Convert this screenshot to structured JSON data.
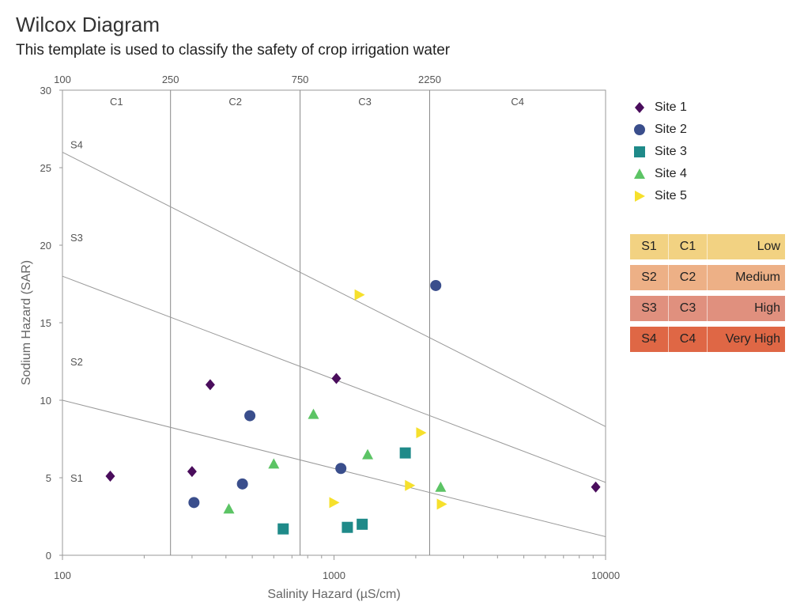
{
  "page": {
    "title": "Wilcox Diagram",
    "subtitle": "This template is used to classify the safety of crop irrigation water"
  },
  "chart_data": {
    "type": "scatter",
    "title": "Wilcox Diagram",
    "subtitle": "This template is used to classify the safety of crop irrigation water",
    "xlabel": "Salinity Hazard (µS/cm)",
    "ylabel": "Sodium Hazard (SAR)",
    "x_scale": "log",
    "xlim": [
      100,
      10000
    ],
    "ylim": [
      0,
      30
    ],
    "x_tick_labels": [
      "100",
      "1000",
      "10000"
    ],
    "y_ticks": [
      0,
      5,
      10,
      15,
      20,
      25,
      30
    ],
    "top_axis_ticks": [
      "100",
      "250",
      "750",
      "2250"
    ],
    "salinity_class_boundaries": [
      250,
      750,
      2250
    ],
    "salinity_class_labels": [
      "C1",
      "C2",
      "C3",
      "C4"
    ],
    "sodium_class_labels": [
      "S1",
      "S2",
      "S3",
      "S4"
    ],
    "sodium_class_lines": [
      {
        "x": [
          100,
          10000
        ],
        "y": [
          10,
          1.2
        ]
      },
      {
        "x": [
          100,
          10000
        ],
        "y": [
          18,
          4.7
        ]
      },
      {
        "x": [
          100,
          10000
        ],
        "y": [
          26,
          8.3
        ]
      }
    ],
    "series": [
      {
        "name": "Site 1",
        "marker": "diamond",
        "color": "#4a0d5c",
        "points": [
          [
            150,
            5.1
          ],
          [
            300,
            5.4
          ],
          [
            350,
            11.0
          ],
          [
            1020,
            11.4
          ],
          [
            9200,
            4.4
          ]
        ]
      },
      {
        "name": "Site 2",
        "marker": "circle",
        "color": "#3a4e8c",
        "points": [
          [
            305,
            3.4
          ],
          [
            460,
            4.6
          ],
          [
            490,
            9.0
          ],
          [
            1060,
            5.6
          ],
          [
            2370,
            17.4
          ]
        ]
      },
      {
        "name": "Site 3",
        "marker": "square",
        "color": "#1f8a89",
        "points": [
          [
            650,
            1.7
          ],
          [
            1120,
            1.8
          ],
          [
            1270,
            2.0
          ],
          [
            1830,
            6.6
          ]
        ]
      },
      {
        "name": "Site 4",
        "marker": "triangle-up",
        "color": "#5cc465",
        "points": [
          [
            410,
            3.0
          ],
          [
            600,
            5.9
          ],
          [
            840,
            9.1
          ],
          [
            1330,
            6.5
          ],
          [
            2470,
            4.4
          ]
        ]
      },
      {
        "name": "Site 5",
        "marker": "triangle-right",
        "color": "#f6e02c",
        "points": [
          [
            1000,
            3.4
          ],
          [
            1240,
            16.8
          ],
          [
            1900,
            4.5
          ],
          [
            2090,
            7.9
          ],
          [
            2490,
            3.3
          ]
        ]
      }
    ],
    "legend_position": "right"
  },
  "classification": [
    {
      "s": "S1",
      "c": "C1",
      "quality": "Low",
      "color": "#f2d282"
    },
    {
      "s": "S2",
      "c": "C2",
      "quality": "Medium",
      "color": "#edb086"
    },
    {
      "s": "S3",
      "c": "C3",
      "quality": "High",
      "color": "#e0907e"
    },
    {
      "s": "S4",
      "c": "C4",
      "quality": "Very High",
      "color": "#df6745"
    }
  ]
}
